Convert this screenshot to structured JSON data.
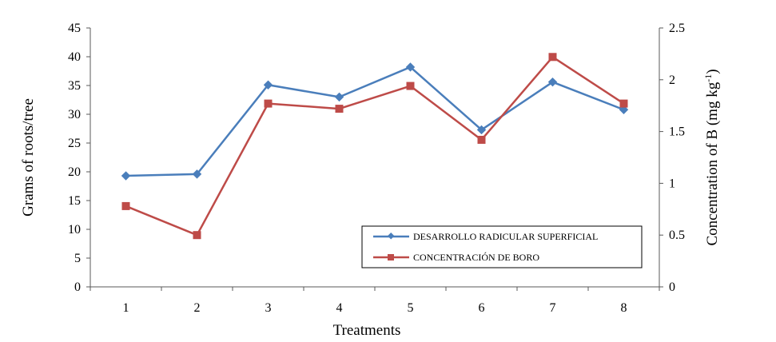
{
  "chart_data": {
    "type": "line",
    "x": [
      1,
      2,
      3,
      4,
      5,
      6,
      7,
      8
    ],
    "xlabel": "Treatments",
    "ylabel": "Grams of roots/tree",
    "y2label_main": "Concentration of B (mg kg",
    "y2label_sup": "-1",
    "y2label_end": ")",
    "ylim": [
      0,
      45
    ],
    "y2lim": [
      0,
      2.5
    ],
    "yticks": [
      "0",
      "5",
      "10",
      "15",
      "20",
      "25",
      "30",
      "35",
      "40",
      "45"
    ],
    "y2ticks": [
      "0",
      "0.5",
      "1",
      "1.5",
      "2",
      "2.5"
    ],
    "grid": false,
    "legend_position": "bottom-right",
    "series": [
      {
        "name": "DESARROLLO RADICULAR SUPERFICIAL",
        "axis": "left",
        "color": "#4A7EBB",
        "marker": "diamond",
        "values": [
          19.3,
          19.6,
          35.1,
          33.0,
          38.2,
          27.3,
          35.6,
          30.8
        ]
      },
      {
        "name": "CONCENTRACIÓN DE BORO",
        "axis": "right",
        "color": "#BE4B48",
        "marker": "square",
        "values": [
          0.78,
          0.5,
          1.77,
          1.72,
          1.94,
          1.42,
          2.22,
          1.77
        ]
      }
    ]
  }
}
